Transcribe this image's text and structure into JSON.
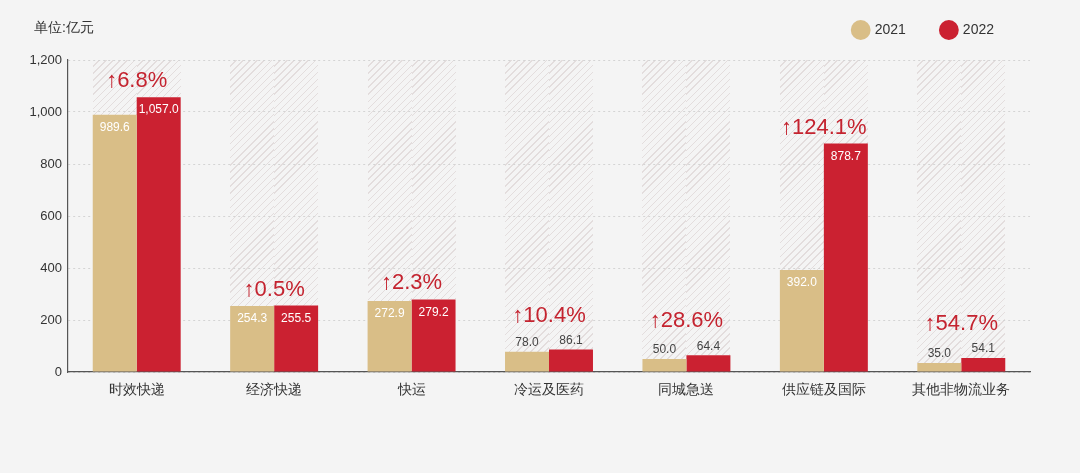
{
  "chart_data": {
    "type": "bar",
    "ylabel": "单位:亿元",
    "categories": [
      "时效快递",
      "经济快递",
      "快运",
      "冷运及医药",
      "同城急送",
      "供应链及国际",
      "其他非物流业务"
    ],
    "series": [
      {
        "name": "2021",
        "color": "#d9be87",
        "values": [
          989.6,
          254.3,
          272.9,
          78.0,
          50.0,
          392.0,
          35.0
        ],
        "value_labels": [
          "989.6",
          "254.3",
          "272.9",
          "78.0",
          "50.0",
          "392.0",
          "35.0"
        ]
      },
      {
        "name": "2022",
        "color": "#cb2131",
        "values": [
          1057.0,
          255.5,
          279.2,
          86.1,
          64.4,
          878.7,
          54.1
        ],
        "value_labels": [
          "1,057.0",
          "255.5",
          "279.2",
          "86.1",
          "64.4",
          "878.7",
          "54.1"
        ]
      }
    ],
    "ylim": [
      0,
      1200
    ],
    "yticks": [
      0,
      200,
      400,
      600,
      800,
      {
        "value": 1000,
        "label": "1,000"
      },
      {
        "value": 1200,
        "label": "1,200"
      }
    ],
    "grid": "y",
    "legend": "top right",
    "annotations": [
      "↑6.8%",
      "↑0.5%",
      "↑2.3%",
      "↑10.4%",
      "↑28.6%",
      "↑124.1%",
      "↑54.7%"
    ]
  }
}
